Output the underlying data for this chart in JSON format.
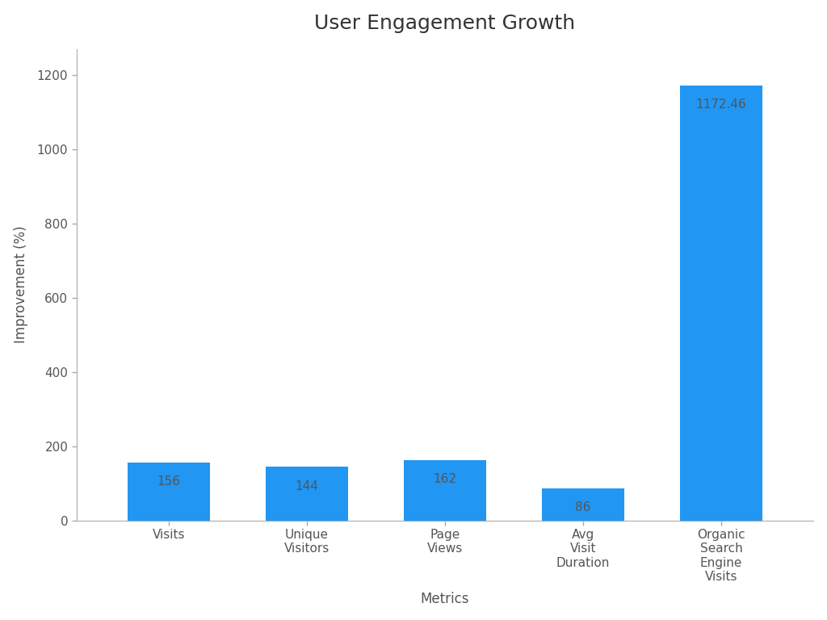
{
  "title": "User Engagement Growth",
  "xlabel": "Metrics",
  "ylabel": "Improvement (%)",
  "categories": [
    "Visits",
    "Unique\nVisitors",
    "Page\nViews",
    "Avg\nVisit\nDuration",
    "Organic\nSearch\nEngine\nVisits"
  ],
  "values": [
    156,
    144,
    162,
    86,
    1172.46
  ],
  "bar_color": "#2196F3",
  "bar_labels": [
    "156",
    "144",
    "162",
    "86",
    "1172.46"
  ],
  "ylim": [
    0,
    1270
  ],
  "yticks": [
    0,
    200,
    400,
    600,
    800,
    1000,
    1200
  ],
  "title_fontsize": 18,
  "axis_label_fontsize": 12,
  "tick_label_fontsize": 11,
  "bar_label_fontsize": 11,
  "bar_label_color": "#555555",
  "background_color": "#ffffff",
  "spine_color": "#aaaaaa",
  "tick_color": "#aaaaaa"
}
